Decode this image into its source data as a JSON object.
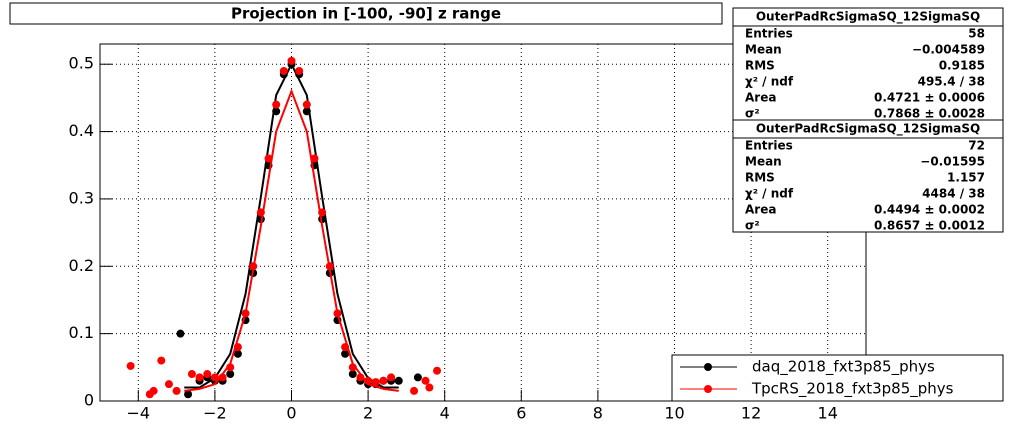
{
  "chart_data": {
    "type": "scatter",
    "title": "Projection in [-100, -90] z range",
    "xlim": [
      -5,
      15
    ],
    "ylim": [
      0,
      0.53
    ],
    "xticks": [
      {
        "value": -4,
        "label": "−4"
      },
      {
        "value": -2,
        "label": "−2"
      },
      0,
      2,
      4,
      6,
      8,
      10,
      12,
      14
    ],
    "yticks": [
      0,
      0.1,
      0.2,
      0.3,
      0.4,
      0.5
    ],
    "grid": true,
    "legend": "bottom-right",
    "series": [
      {
        "name": "daq_2018_fxt3p85_phys",
        "color": "#000000",
        "x": [
          -2.9,
          -2.7,
          -2.4,
          -2.2,
          -2.0,
          -1.8,
          -1.6,
          -1.4,
          -1.2,
          -1.0,
          -0.8,
          -0.6,
          -0.4,
          -0.2,
          0,
          0.2,
          0.4,
          0.6,
          0.8,
          1.0,
          1.2,
          1.4,
          1.6,
          1.8,
          2.0,
          2.2,
          2.4,
          2.6,
          2.8,
          3.3
        ],
        "values": [
          0.1,
          0.01,
          0.03,
          0.035,
          0.03,
          0.03,
          0.04,
          0.07,
          0.12,
          0.19,
          0.27,
          0.35,
          0.43,
          0.485,
          0.5,
          0.485,
          0.43,
          0.35,
          0.27,
          0.19,
          0.12,
          0.07,
          0.04,
          0.03,
          0.025,
          0.025,
          0.03,
          0.03,
          0.03,
          0.035
        ],
        "fit": {
          "x": [
            -2.8,
            -2.4,
            -2.0,
            -1.6,
            -1.2,
            -0.8,
            -0.4,
            0,
            0.4,
            0.8,
            1.2,
            1.6,
            2.0,
            2.4,
            2.8
          ],
          "values": [
            0.02,
            0.02,
            0.034,
            0.07,
            0.159,
            0.303,
            0.454,
            0.5,
            0.454,
            0.303,
            0.159,
            0.07,
            0.034,
            0.02,
            0.02
          ]
        }
      },
      {
        "name": "TpcRS_2018_fxt3p85_phys",
        "color": "#ff0000",
        "x": [
          -4.2,
          -3.7,
          -3.6,
          -3.4,
          -3.2,
          -3.0,
          -2.6,
          -2.4,
          -2.2,
          -2.0,
          -1.8,
          -1.6,
          -1.4,
          -1.2,
          -1.0,
          -0.8,
          -0.6,
          -0.4,
          -0.2,
          0,
          0.2,
          0.4,
          0.6,
          0.8,
          1.0,
          1.2,
          1.4,
          1.6,
          1.8,
          2.0,
          2.2,
          2.4,
          2.6,
          3.2,
          3.5,
          3.6,
          3.8
        ],
        "values": [
          0.052,
          0.01,
          0.015,
          0.06,
          0.025,
          0.015,
          0.04,
          0.035,
          0.04,
          0.035,
          0.035,
          0.05,
          0.08,
          0.13,
          0.2,
          0.28,
          0.36,
          0.44,
          0.49,
          0.505,
          0.49,
          0.44,
          0.36,
          0.28,
          0.2,
          0.13,
          0.08,
          0.05,
          0.035,
          0.03,
          0.028,
          0.03,
          0.035,
          0.015,
          0.03,
          0.02,
          0.045
        ],
        "fit": {
          "x": [
            -2.8,
            -2.4,
            -2.0,
            -1.6,
            -1.2,
            -0.8,
            -0.4,
            0,
            0.4,
            0.8,
            1.2,
            1.6,
            2.0,
            2.4,
            2.8
          ],
          "values": [
            0.015,
            0.018,
            0.025,
            0.055,
            0.13,
            0.26,
            0.4,
            0.46,
            0.4,
            0.26,
            0.13,
            0.055,
            0.025,
            0.018,
            0.015
          ]
        }
      }
    ],
    "stats_boxes": [
      {
        "title": "OuterPadRcSigmaSQ_12SigmaSQ",
        "rows": [
          [
            "Entries",
            "58"
          ],
          [
            "Mean",
            "−0.004589"
          ],
          [
            "RMS",
            "0.9185"
          ],
          [
            "χ² / ndf",
            "495.4 / 38"
          ],
          [
            "Area",
            "0.4721 ± 0.0006"
          ],
          [
            "σ²",
            "0.7868 ± 0.0028"
          ]
        ]
      },
      {
        "title": "OuterPadRcSigmaSQ_12SigmaSQ",
        "rows": [
          [
            "Entries",
            "72"
          ],
          [
            "Mean",
            "−0.01595"
          ],
          [
            "RMS",
            "1.157"
          ],
          [
            "χ² / ndf",
            "4484 / 38"
          ],
          [
            "Area",
            "0.4494 ± 0.0002"
          ],
          [
            "σ²",
            "0.8657 ± 0.0012"
          ]
        ]
      }
    ]
  }
}
